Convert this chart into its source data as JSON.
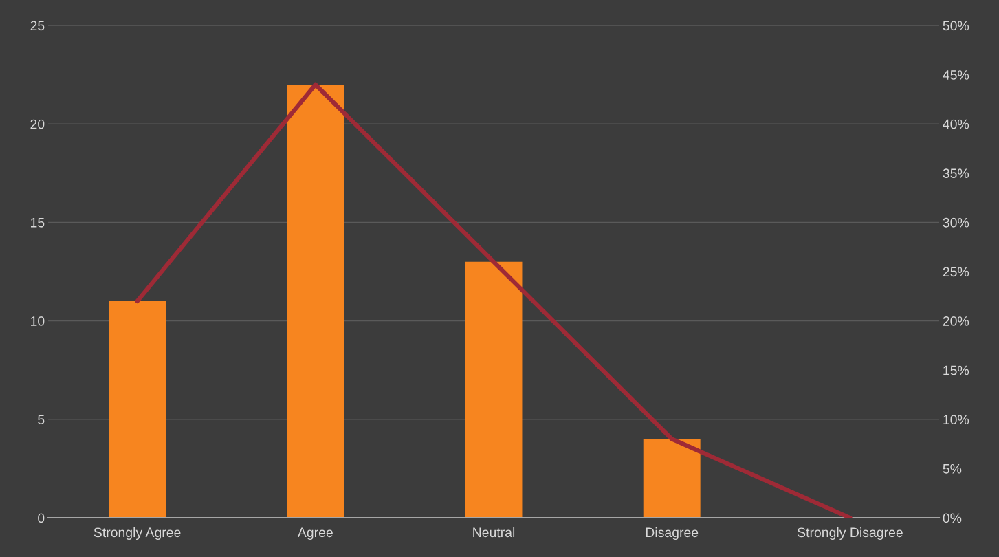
{
  "chart_data": {
    "type": "bar",
    "categories": [
      "Strongly Agree",
      "Agree",
      "Neutral",
      "Disagree",
      "Strongly Disagree"
    ],
    "series": [
      {
        "color": "#f7851f",
        "values": [
          11,
          22,
          13,
          4,
          0
        ]
      },
      {
        "type": "line",
        "axis": "y2",
        "color": "#9e2a36",
        "values": [
          22,
          44,
          26,
          8,
          0
        ]
      }
    ],
    "ylim": [
      0,
      25
    ],
    "yticks": [
      0,
      5,
      10,
      15,
      20,
      25
    ],
    "y2lim": [
      0,
      50
    ],
    "y2ticks": [
      {
        "value": 0,
        "label": "0%"
      },
      {
        "value": 5,
        "label": "5%"
      },
      {
        "value": 10,
        "label": "10%"
      },
      {
        "value": 15,
        "label": "15%"
      },
      {
        "value": 20,
        "label": "20%"
      },
      {
        "value": 25,
        "label": "25%"
      },
      {
        "value": 30,
        "label": "30%"
      },
      {
        "value": 35,
        "label": "35%"
      },
      {
        "value": 40,
        "label": "40%"
      },
      {
        "value": 45,
        "label": "45%"
      },
      {
        "value": 50,
        "label": "50%"
      }
    ],
    "grid": "y",
    "marker": "none",
    "line_style": "solid"
  }
}
